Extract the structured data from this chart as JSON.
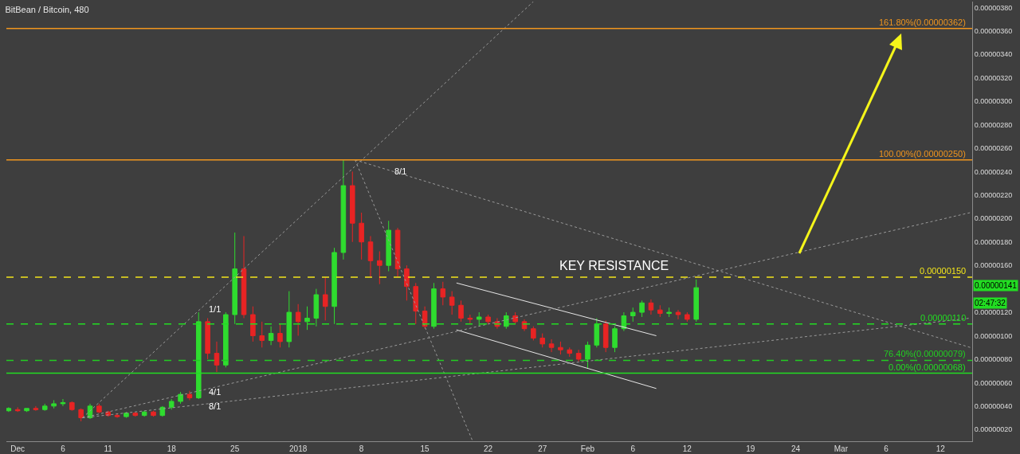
{
  "chart_data": {
    "type": "candlestick",
    "title": "BitBean / Bitcoin, 480",
    "xlim": [
      "2017-11-29T18:00",
      "2018-03-16T12:00"
    ],
    "xticks": [
      {
        "value": "2017-12-01",
        "label": "Dec"
      },
      {
        "value": "2017-12-06",
        "label": "6"
      },
      {
        "value": "2017-12-11",
        "label": "11"
      },
      {
        "value": "2017-12-18",
        "label": "18"
      },
      {
        "value": "2017-12-25",
        "label": "25"
      },
      {
        "value": "2018-01-01",
        "label": "2018"
      },
      {
        "value": "2018-01-08",
        "label": "8"
      },
      {
        "value": "2018-01-15",
        "label": "15"
      },
      {
        "value": "2018-01-22",
        "label": "22"
      },
      {
        "value": "2018-01-28",
        "label": "27"
      },
      {
        "value": "2018-02-02",
        "label": "Feb"
      },
      {
        "value": "2018-02-07",
        "label": "6"
      },
      {
        "value": "2018-02-13",
        "label": "12"
      },
      {
        "value": "2018-02-20",
        "label": "19"
      },
      {
        "value": "2018-02-25",
        "label": "24"
      },
      {
        "value": "2018-03-02",
        "label": "Mar"
      },
      {
        "value": "2018-03-07",
        "label": "6"
      },
      {
        "value": "2018-03-13",
        "label": "12"
      }
    ],
    "ylim": [
      1e-07,
      3.85e-06
    ],
    "yticks": [
      {
        "value": 2e-07,
        "label": "0.00000020"
      },
      {
        "value": 4e-07,
        "label": "0.00000040"
      },
      {
        "value": 6e-07,
        "label": "0.00000060"
      },
      {
        "value": 8e-07,
        "label": "0.00000080"
      },
      {
        "value": 1e-06,
        "label": "0.00000100"
      },
      {
        "value": 1.2e-06,
        "label": "0.00000120"
      },
      {
        "value": 1.6e-06,
        "label": "0.00000160"
      },
      {
        "value": 1.8e-06,
        "label": "0.00000180"
      },
      {
        "value": 2e-06,
        "label": "0.00000200"
      },
      {
        "value": 2.2e-06,
        "label": "0.00000220"
      },
      {
        "value": 2.4e-06,
        "label": "0.00000240"
      },
      {
        "value": 2.6e-06,
        "label": "0.00000260"
      },
      {
        "value": 2.8e-06,
        "label": "0.00000280"
      },
      {
        "value": 3e-06,
        "label": "0.00000300"
      },
      {
        "value": 3.2e-06,
        "label": "0.00000320"
      },
      {
        "value": 3.4e-06,
        "label": "0.00000340"
      },
      {
        "value": 3.6e-06,
        "label": "0.00000360"
      },
      {
        "value": 3.8e-06,
        "label": "0.00000380"
      }
    ],
    "series": [
      {
        "type": "candlestick",
        "colors": [
          "#2fdc2f",
          "#e82424",
          "#2fdc2f",
          "#e82424",
          "#2fdc2f",
          "#2fdc2f",
          "#2fdc2f",
          "#e82424",
          "#e82424",
          "#2fdc2f",
          "#e82424",
          "#e82424",
          "#e82424",
          "#2fdc2f",
          "#e82424",
          "#2fdc2f",
          "#e82424",
          "#2fdc2f",
          "#2fdc2f",
          "#2fdc2f",
          "#e82424",
          "#2fdc2f",
          "#e82424",
          "#e82424",
          "#2fdc2f",
          "#2fdc2f",
          "#e82424",
          "#e82424",
          "#e82424",
          "#2fdc2f",
          "#e82424",
          "#2fdc2f",
          "#e82424",
          "#2fdc2f",
          "#2fdc2f",
          "#e82424",
          "#2fdc2f",
          "#2fdc2f",
          "#e82424",
          "#e82424",
          "#e82424",
          "#e82424",
          "#2fdc2f",
          "#e82424",
          "#e82424",
          "#e82424",
          "#e82424",
          "#2fdc2f",
          "#e82424",
          "#e82424",
          "#e82424",
          "#e82424",
          "#2fdc2f",
          "#e82424",
          "#e82424",
          "#2fdc2f",
          "#e82424",
          "#e82424",
          "#e82424",
          "#e82424",
          "#e82424",
          "#e82424",
          "#e82424",
          "#e82424",
          "#2fdc2f",
          "#2fdc2f",
          "#e82424",
          "#2fdc2f",
          "#2fdc2f",
          "#2fdc2f",
          "#2fdc2f",
          "#e82424",
          "#e82424",
          "#2fdc2f",
          "#e82424",
          "#e82424",
          "#2fdc2f"
        ],
        "x": [
          "2017-11-30",
          "2017-12-01",
          "2017-12-02",
          "2017-12-03",
          "2017-12-04",
          "2017-12-05",
          "2017-12-06",
          "2017-12-07",
          "2017-12-08",
          "2017-12-09",
          "2017-12-10",
          "2017-12-11",
          "2017-12-12",
          "2017-12-13",
          "2017-12-14",
          "2017-12-15",
          "2017-12-16",
          "2017-12-17",
          "2017-12-18",
          "2017-12-19",
          "2017-12-20",
          "2017-12-21",
          "2017-12-22",
          "2017-12-23",
          "2017-12-24",
          "2017-12-25",
          "2017-12-26",
          "2017-12-27",
          "2017-12-28",
          "2017-12-29",
          "2017-12-30",
          "2017-12-31",
          "2018-01-01",
          "2018-01-02",
          "2018-01-03",
          "2018-01-04",
          "2018-01-05",
          "2018-01-06",
          "2018-01-07",
          "2018-01-08",
          "2018-01-09",
          "2018-01-10",
          "2018-01-11",
          "2018-01-12",
          "2018-01-13",
          "2018-01-14",
          "2018-01-15",
          "2018-01-16",
          "2018-01-17",
          "2018-01-18",
          "2018-01-19",
          "2018-01-20",
          "2018-01-21",
          "2018-01-22",
          "2018-01-23",
          "2018-01-24",
          "2018-01-25",
          "2018-01-26",
          "2018-01-27",
          "2018-01-28",
          "2018-01-29",
          "2018-01-30",
          "2018-01-31",
          "2018-02-01",
          "2018-02-02",
          "2018-02-03",
          "2018-02-04",
          "2018-02-05",
          "2018-02-06",
          "2018-02-07",
          "2018-02-08",
          "2018-02-09",
          "2018-02-10",
          "2018-02-11",
          "2018-02-12",
          "2018-02-13",
          "2018-02-14"
        ],
        "ohlc": [
          [
            3.6e-07,
            3.9e-07,
            3.5e-07,
            3.8e-07
          ],
          [
            3.7e-07,
            3.9e-07,
            3.5e-07,
            3.6e-07
          ],
          [
            3.6e-07,
            3.8e-07,
            3.5e-07,
            3.8e-07
          ],
          [
            3.8e-07,
            4e-07,
            3.6e-07,
            3.7e-07
          ],
          [
            3.7e-07,
            4.2e-07,
            3.6e-07,
            4e-07
          ],
          [
            4e-07,
            4.5e-07,
            3.8e-07,
            4.2e-07
          ],
          [
            4.2e-07,
            4.6e-07,
            4e-07,
            4.3e-07
          ],
          [
            4.3e-07,
            4.4e-07,
            3.6e-07,
            3.7e-07
          ],
          [
            3.7e-07,
            3.8e-07,
            2.7e-07,
            3e-07
          ],
          [
            3e-07,
            4.2e-07,
            2.9e-07,
            4e-07
          ],
          [
            4e-07,
            4.2e-07,
            3.4e-07,
            3.5e-07
          ],
          [
            3.5e-07,
            3.6e-07,
            3.1e-07,
            3.2e-07
          ],
          [
            3.2e-07,
            3.4e-07,
            3e-07,
            3.1e-07
          ],
          [
            3.1e-07,
            3.5e-07,
            3e-07,
            3.4e-07
          ],
          [
            3.4e-07,
            3.5e-07,
            3.1e-07,
            3.2e-07
          ],
          [
            3.2e-07,
            3.6e-07,
            3.1e-07,
            3.5e-07
          ],
          [
            3.5e-07,
            3.6e-07,
            3.1e-07,
            3.2e-07
          ],
          [
            3.2e-07,
            4e-07,
            3.1e-07,
            3.9e-07
          ],
          [
            3.9e-07,
            4.6e-07,
            3.7e-07,
            4.4e-07
          ],
          [
            4.4e-07,
            5.2e-07,
            4.2e-07,
            5e-07
          ],
          [
            5e-07,
            5.3e-07,
            4.5e-07,
            4.7e-07
          ],
          [
            4.7e-07,
            1.2e-06,
            4.6e-07,
            1.12e-06
          ],
          [
            1.12e-06,
            1.15e-06,
            8e-07,
            8.5e-07
          ],
          [
            8.5e-07,
            9.5e-07,
            6.9e-07,
            7.5e-07
          ],
          [
            7.5e-07,
            1.2e-06,
            7.3e-07,
            1.18e-06
          ],
          [
            1.18e-06,
            1.88e-06,
            1.1e-06,
            1.57e-06
          ],
          [
            1.57e-06,
            1.85e-06,
            1.15e-06,
            1.18e-06
          ],
          [
            1.18e-06,
            1.25e-06,
            9.5e-07,
            1e-06
          ],
          [
            1e-06,
            1.12e-06,
            9e-07,
            9.6e-07
          ],
          [
            9.6e-07,
            1.08e-06,
            9.2e-07,
            1.02e-06
          ],
          [
            1.02e-06,
            1.1e-06,
            9e-07,
            9.5e-07
          ],
          [
            9.5e-07,
            1.38e-06,
            9e-07,
            1.2e-06
          ],
          [
            1.2e-06,
            1.27e-06,
            1e-06,
            1.12e-06
          ],
          [
            1.12e-06,
            1.25e-06,
            1.05e-06,
            1.15e-06
          ],
          [
            1.15e-06,
            1.4e-06,
            1.08e-06,
            1.35e-06
          ],
          [
            1.35e-06,
            1.5e-06,
            1.13e-06,
            1.25e-06
          ],
          [
            1.25e-06,
            1.75e-06,
            1.1e-06,
            1.71e-06
          ],
          [
            1.71e-06,
            2.5e-06,
            1.65e-06,
            2.28e-06
          ],
          [
            2.28e-06,
            2.4e-06,
            1.8e-06,
            1.96e-06
          ],
          [
            1.96e-06,
            2.05e-06,
            1.65e-06,
            1.8e-06
          ],
          [
            1.8e-06,
            1.85e-06,
            1.5e-06,
            1.64e-06
          ],
          [
            1.64e-06,
            1.72e-06,
            1.44e-06,
            1.6e-06
          ],
          [
            1.6e-06,
            1.98e-06,
            1.55e-06,
            1.9e-06
          ],
          [
            1.9e-06,
            1.92e-06,
            1.5e-06,
            1.57e-06
          ],
          [
            1.57e-06,
            1.6e-06,
            1.3e-06,
            1.42e-06
          ],
          [
            1.42e-06,
            1.45e-06,
            1.1e-06,
            1.21e-06
          ],
          [
            1.21e-06,
            1.25e-06,
            1.06e-06,
            1.08e-06
          ],
          [
            1.08e-06,
            1.45e-06,
            1.06e-06,
            1.4e-06
          ],
          [
            1.4e-06,
            1.46e-06,
            1.26e-06,
            1.33e-06
          ],
          [
            1.33e-06,
            1.38e-06,
            1.18e-06,
            1.26e-06
          ],
          [
            1.26e-06,
            1.3e-06,
            1.12e-06,
            1.15e-06
          ],
          [
            1.15e-06,
            1.18e-06,
            1.1e-06,
            1.14e-06
          ],
          [
            1.14e-06,
            1.2e-06,
            1.08e-06,
            1.16e-06
          ],
          [
            1.16e-06,
            1.18e-06,
            1.1e-06,
            1.12e-06
          ],
          [
            1.12e-06,
            1.15e-06,
            1.06e-06,
            1.08e-06
          ],
          [
            1.08e-06,
            1.2e-06,
            1.06e-06,
            1.17e-06
          ],
          [
            1.17e-06,
            1.2e-06,
            1.1e-06,
            1.12e-06
          ],
          [
            1.12e-06,
            1.14e-06,
            1.04e-06,
            1.06e-06
          ],
          [
            1.06e-06,
            1.08e-06,
            9.6e-07,
            9.8e-07
          ],
          [
            9.8e-07,
            1.02e-06,
            9e-07,
            9.3e-07
          ],
          [
            9.3e-07,
            9.7e-07,
            8.6e-07,
            9e-07
          ],
          [
            9e-07,
            9.5e-07,
            8.4e-07,
            8.8e-07
          ],
          [
            8.8e-07,
            9e-07,
            8.2e-07,
            8.5e-07
          ],
          [
            8.5e-07,
            8.8e-07,
            7.8e-07,
            8e-07
          ],
          [
            8e-07,
            9.5e-07,
            7.2e-07,
            9.2e-07
          ],
          [
            9.2e-07,
            1.15e-06,
            9e-07,
            1.1e-06
          ],
          [
            1.1e-06,
            1.13e-06,
            8.6e-07,
            9e-07
          ],
          [
            9e-07,
            1.08e-06,
            8.6e-07,
            1.06e-06
          ],
          [
            1.06e-06,
            1.2e-06,
            1.04e-06,
            1.17e-06
          ],
          [
            1.17e-06,
            1.24e-06,
            1.12e-06,
            1.2e-06
          ],
          [
            1.2e-06,
            1.3e-06,
            1.16e-06,
            1.28e-06
          ],
          [
            1.28e-06,
            1.31e-06,
            1.18e-06,
            1.22e-06
          ],
          [
            1.22e-06,
            1.26e-06,
            1.16e-06,
            1.19e-06
          ],
          [
            1.19e-06,
            1.24e-06,
            1.16e-06,
            1.2e-06
          ],
          [
            1.2e-06,
            1.22e-06,
            1.14e-06,
            1.18e-06
          ],
          [
            1.18e-06,
            1.2e-06,
            1.12e-06,
            1.14e-06
          ],
          [
            1.14e-06,
            1.48e-06,
            1.12e-06,
            1.41e-06
          ]
        ]
      },
      {
        "type": "line",
        "color": "#9a9a9a",
        "line_style": "dotted",
        "x": [
          "2017-12-08T04:00",
          "2018-01-27T00:00"
        ],
        "values": [
          3e-07,
          3.85e-06
        ]
      },
      {
        "type": "line",
        "color": "#9a9a9a",
        "line_style": "dotted",
        "x": [
          "2017-12-08T04:00",
          "2018-03-16T07:00"
        ],
        "values": [
          3e-07,
          2.05e-06
        ]
      },
      {
        "type": "line",
        "color": "#9a9a9a",
        "line_style": "dotted",
        "x": [
          "2017-12-08T04:00",
          "2018-03-16T07:00"
        ],
        "values": [
          3e-07,
          1.15e-06
        ]
      },
      {
        "type": "line",
        "color": "#9a9a9a",
        "line_style": "dotted",
        "x": [
          "2018-01-07T07:00",
          "2018-03-16T07:00"
        ],
        "values": [
          2.5e-06,
          9e-07
        ]
      },
      {
        "type": "line",
        "color": "#9a9a9a",
        "line_style": "dotted",
        "x": [
          "2018-01-07T07:00",
          "2018-01-20T07:00"
        ],
        "values": [
          2.5e-06,
          1e-07
        ]
      },
      {
        "type": "line",
        "color": "#e6e6e6",
        "line_style": "solid",
        "x": [
          "2018-01-18T12:00",
          "2018-02-09T14:00"
        ],
        "values": [
          1.45e-06,
          1e-06
        ]
      },
      {
        "type": "line",
        "color": "#e6e6e6",
        "line_style": "solid",
        "x": [
          "2018-01-18T12:00",
          "2018-02-09T14:00"
        ],
        "values": [
          1.05e-06,
          5.5e-07
        ]
      }
    ],
    "ref_lines": [
      {
        "axis": "y",
        "value": 3.62e-06,
        "label": "161.80%(0.00000362)",
        "color": "#f0951e",
        "line_style": "solid"
      },
      {
        "axis": "y",
        "value": 2.5e-06,
        "label": "100.00%(0.00000250)",
        "color": "#f0951e",
        "line_style": "solid"
      },
      {
        "axis": "y",
        "value": 1.5e-06,
        "label": "0.00000150",
        "color": "#f2e51b",
        "line_style": "dashed"
      },
      {
        "axis": "y",
        "value": 1.1e-06,
        "label": "0.00000110",
        "color": "#22dd22",
        "line_style": "dashed"
      },
      {
        "axis": "y",
        "value": 7.9e-07,
        "label": "76.40%(0.00000079)",
        "color": "#22cc22",
        "line_style": "dashed"
      },
      {
        "axis": "y",
        "value": 6.8e-07,
        "label": "0.00%(0.00000068)",
        "color": "#22dd22",
        "line_style": "solid"
      }
    ],
    "annotations": [
      "KEY RESISTANCE",
      {
        "text": "1/1",
        "x": "2017-12-21T22:00",
        "y": 1.23e-06
      },
      {
        "text": "4/1",
        "x": "2017-12-21T22:00",
        "y": 5.2e-07
      },
      {
        "text": "8/1",
        "x": "2017-12-21T22:00",
        "y": 4e-07
      },
      "8/1",
      "0.00000141",
      "02:47:32"
    ]
  }
}
